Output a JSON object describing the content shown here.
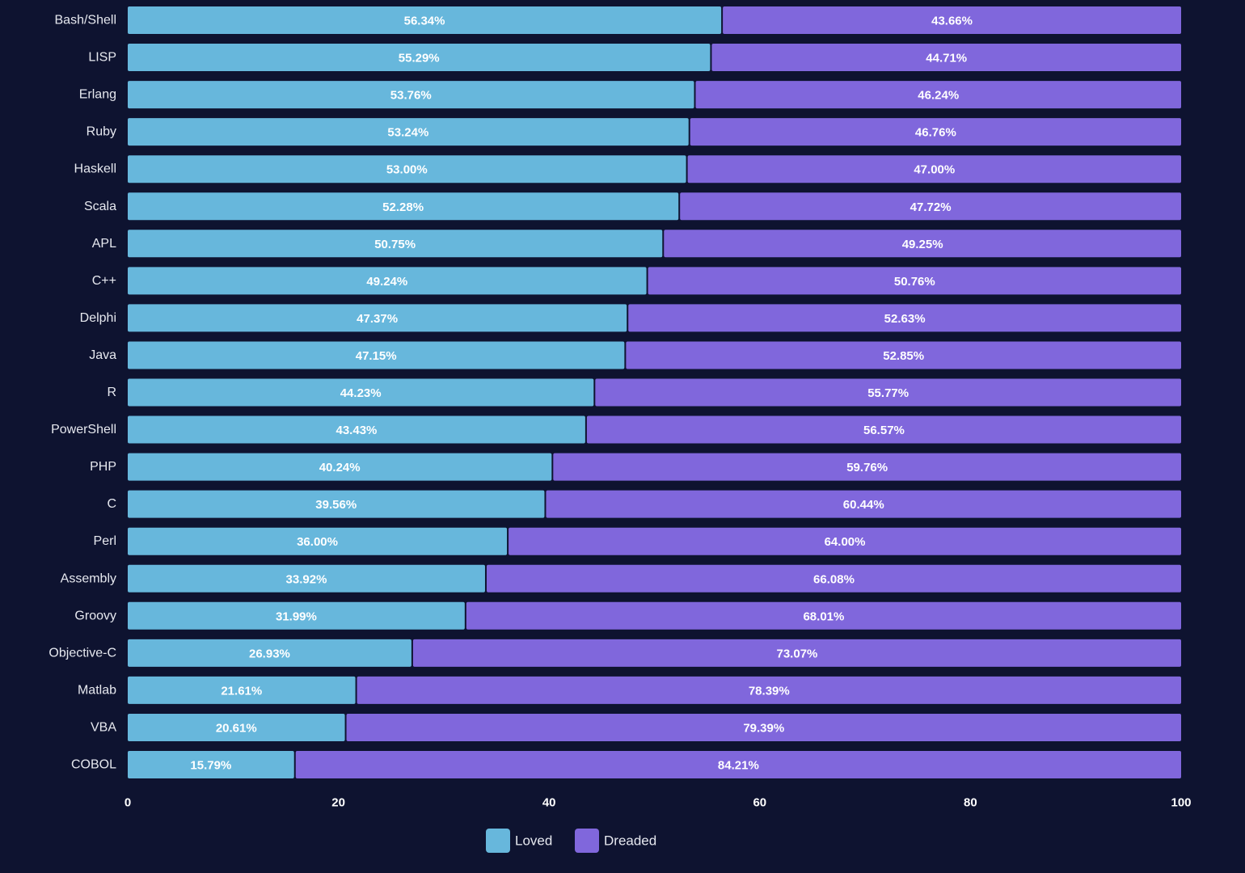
{
  "chart_data": {
    "type": "bar",
    "orientation": "horizontal",
    "stacked": true,
    "categories": [
      "Bash/Shell",
      "LISP",
      "Erlang",
      "Ruby",
      "Haskell",
      "Scala",
      "APL",
      "C++",
      "Delphi",
      "Java",
      "R",
      "PowerShell",
      "PHP",
      "C",
      "Perl",
      "Assembly",
      "Groovy",
      "Objective-C",
      "Matlab",
      "VBA",
      "COBOL"
    ],
    "series": [
      {
        "name": "Loved",
        "color": "#67b7dc",
        "values": [
          56.34,
          55.29,
          53.76,
          53.24,
          53.0,
          52.28,
          50.75,
          49.24,
          47.37,
          47.15,
          44.23,
          43.43,
          40.24,
          39.56,
          36.0,
          33.92,
          31.99,
          26.93,
          21.61,
          20.61,
          15.79
        ],
        "labels": [
          "56.34%",
          "55.29%",
          "53.76%",
          "53.24%",
          "53.00%",
          "52.28%",
          "50.75%",
          "49.24%",
          "47.37%",
          "47.15%",
          "44.23%",
          "43.43%",
          "40.24%",
          "39.56%",
          "36.00%",
          "33.92%",
          "31.99%",
          "26.93%",
          "21.61%",
          "20.61%",
          "15.79%"
        ]
      },
      {
        "name": "Dreaded",
        "color": "#8067dc",
        "values": [
          43.66,
          44.71,
          46.24,
          46.76,
          47.0,
          47.72,
          49.25,
          50.76,
          52.63,
          52.85,
          55.77,
          56.57,
          59.76,
          60.44,
          64.0,
          66.08,
          68.01,
          73.07,
          78.39,
          79.39,
          84.21
        ],
        "labels": [
          "43.66%",
          "44.71%",
          "46.24%",
          "46.76%",
          "47.00%",
          "47.72%",
          "49.25%",
          "50.76%",
          "52.63%",
          "52.85%",
          "55.77%",
          "56.57%",
          "59.76%",
          "60.44%",
          "64.00%",
          "66.08%",
          "68.01%",
          "73.07%",
          "78.39%",
          "79.39%",
          "84.21%"
        ]
      }
    ],
    "xlim": [
      0,
      100
    ],
    "xticks": [
      0,
      20,
      40,
      60,
      80,
      100
    ],
    "xtick_labels": [
      "0",
      "20",
      "40",
      "60",
      "80",
      "100"
    ],
    "title": "",
    "xlabel": "",
    "ylabel": "",
    "grid": false,
    "legend_position": "bottom-center",
    "background_color": "#0e1330"
  }
}
